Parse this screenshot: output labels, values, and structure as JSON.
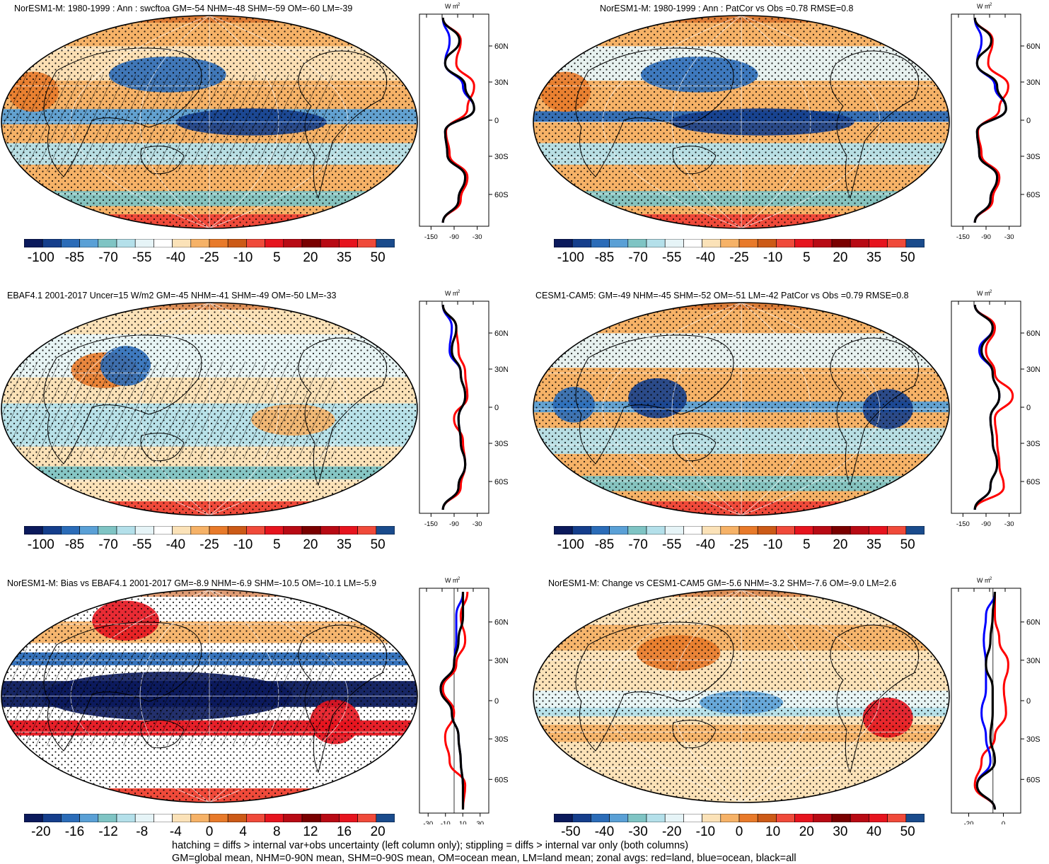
{
  "panels": [
    {
      "title": "NorESM1-M: 1980-1999 : Ann : swcftoa GM=-54 NHM=-48 SHM=-59 OM=-60 LM=-39",
      "units": "W m",
      "units_exp": "-2",
      "lat_labels": [
        "60N",
        "30N",
        "0",
        "30S",
        "60S"
      ],
      "x_ticks": [
        "-150",
        "-90",
        "-30"
      ],
      "cbar_labels": [
        "-100",
        "-85",
        "-70",
        "-55",
        "-40",
        "-25",
        "-10",
        "5",
        "20",
        "35",
        "50"
      ],
      "hatched": true
    },
    {
      "title": "NorESM1-M: 1980-1999 : Ann : PatCor vs Obs =0.78 RMSE=0.8",
      "units": "W m",
      "units_exp": "-2",
      "lat_labels": [
        "60N",
        "30N",
        "0",
        "30S",
        "60S"
      ],
      "x_ticks": [
        "-150",
        "-90",
        "-30"
      ],
      "cbar_labels": [
        "-100",
        "-85",
        "-70",
        "-55",
        "-40",
        "-25",
        "-10",
        "5",
        "20",
        "35",
        "50"
      ],
      "hatched": false
    },
    {
      "title": "EBAF4.1 2001-2017 Uncer=15 W/m2 GM=-45 NHM=-41 SHM=-49 OM=-50 LM=-33",
      "units": "W m",
      "units_exp": "-2",
      "lat_labels": [
        "60N",
        "30N",
        "0",
        "30S",
        "60S"
      ],
      "x_ticks": [
        "-150",
        "-90",
        "-30"
      ],
      "cbar_labels": [
        "-100",
        "-85",
        "-70",
        "-55",
        "-40",
        "-25",
        "-10",
        "5",
        "20",
        "35",
        "50"
      ],
      "hatched": true
    },
    {
      "title": "CESM1-CAM5: GM=-49 NHM=-45 SHM=-52 OM=-51 LM=-42 PatCor vs Obs =0.79 RMSE=0.8",
      "units": "W m",
      "units_exp": "-2",
      "lat_labels": [
        "60N",
        "30N",
        "0",
        "30S",
        "60S"
      ],
      "x_ticks": [
        "-150",
        "-90",
        "-30"
      ],
      "cbar_labels": [
        "-100",
        "-85",
        "-70",
        "-55",
        "-40",
        "-25",
        "-10",
        "5",
        "20",
        "35",
        "50"
      ],
      "hatched": false
    },
    {
      "title": "NorESM1-M: Bias vs EBAF4.1 2001-2017 GM=-8.9 NHM=-6.9 SHM=-10.5 OM=-10.1 LM=-5.9",
      "units": "W m",
      "units_exp": "-2",
      "lat_labels": [
        "60N",
        "30N",
        "0",
        "30S",
        "60S"
      ],
      "x_ticks": [
        "-30",
        "-10",
        "10",
        "30"
      ],
      "cbar_labels": [
        "-20",
        "-16",
        "-12",
        "-8",
        "-4",
        "0",
        "4",
        "8",
        "12",
        "16",
        "20"
      ],
      "hatched": true
    },
    {
      "title": "NorESM1-M: Change vs CESM1-CAM5 GM=-5.6 NHM=-3.2 SHM=-7.6 OM=-9.0 LM=2.6",
      "units": "W m",
      "units_exp": "-2",
      "lat_labels": [
        "60N",
        "30N",
        "0",
        "30S",
        "60S"
      ],
      "x_ticks": [
        "-20",
        "0"
      ],
      "cbar_labels": [
        "-50",
        "-40",
        "-30",
        "-20",
        "-10",
        "0",
        "10",
        "20",
        "30",
        "40",
        "50"
      ],
      "hatched": false
    }
  ],
  "colorbar_colors": [
    "#0b1a5c",
    "#153e8c",
    "#2b6cb8",
    "#5aa0d6",
    "#7fc4c4",
    "#b4e0ea",
    "#e6f4f7",
    "#ffffff",
    "#fbe2b8",
    "#f6b267",
    "#e87a2a",
    "#cc5a17",
    "#f04a3a",
    "#e6141e",
    "#b80a14",
    "#7a0000",
    "#b80a14",
    "#e6141e",
    "#f04a3a",
    "#1a4b8c"
  ],
  "line_colors": {
    "land": "#ff0000",
    "ocean": "#0000ff",
    "all": "#000000"
  },
  "footer": {
    "line1": "hatching = diffs > internal var+obs uncertainty (left column only); stippling = diffs > internal var only (both columns)",
    "line2": "GM=global mean, NHM=0-90N mean, SHM=0-90S mean, OM=ocean mean, LM=land mean; zonal avgs: red=land, blue=ocean, black=all"
  }
}
